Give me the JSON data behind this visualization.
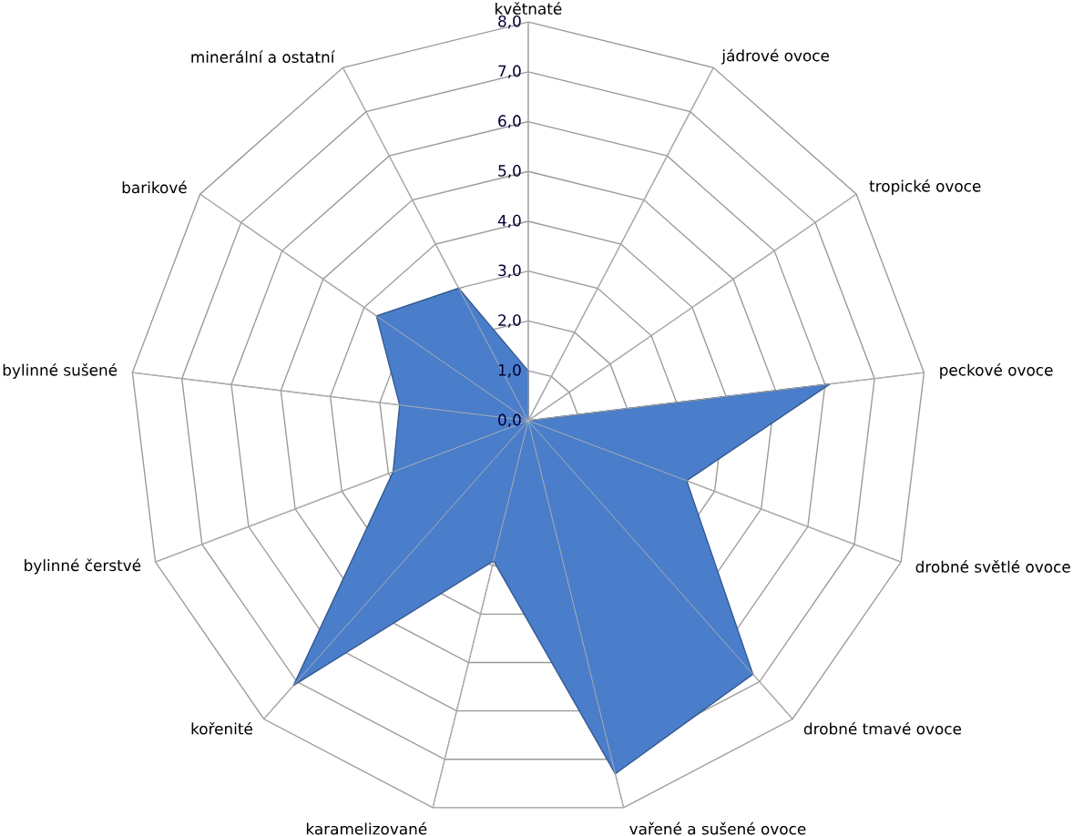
{
  "chart_data": {
    "type": "radar",
    "categories": [
      "květnaté",
      "jádrové ovoce",
      "tropické ovoce",
      "peckové ovoce",
      "drobné světlé ovoce",
      "drobné tmavé ovoce",
      "vařené a sušené ovoce",
      "karamelizované",
      "kořenité",
      "bylinné čerstvé",
      "bylinné sušené",
      "barikové",
      "minerální a ostatní"
    ],
    "series": [
      {
        "color": "#4a7ecb",
        "values": [
          1.0,
          0.0,
          0.0,
          6.1,
          3.4,
          6.8,
          7.3,
          2.9,
          7.1,
          2.9,
          2.6,
          3.7,
          3.0
        ]
      }
    ],
    "ylim": [
      0,
      8
    ],
    "yticks": [
      {
        "value": 0,
        "label": "0,0"
      },
      {
        "value": 1,
        "label": "1,0"
      },
      {
        "value": 2,
        "label": "2,0"
      },
      {
        "value": 3,
        "label": "3,0"
      },
      {
        "value": 4,
        "label": "4,0"
      },
      {
        "value": 5,
        "label": "5,0"
      },
      {
        "value": 6,
        "label": "6,0"
      },
      {
        "value": 7,
        "label": "7,0"
      },
      {
        "value": 8,
        "label": "8,0"
      }
    ],
    "grid": true
  }
}
